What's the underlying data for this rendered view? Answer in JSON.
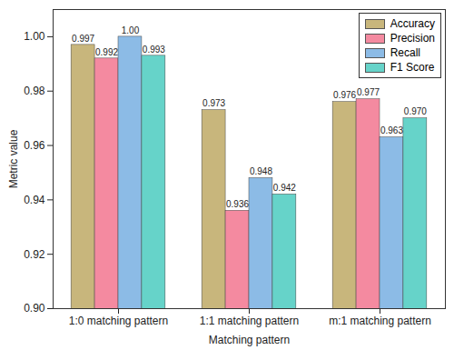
{
  "chart_data": {
    "type": "bar",
    "x_label": "Matching pattern",
    "y_label": "Metric value",
    "categories": [
      "1:0 matching pattern",
      "1:1 matching pattern",
      "m:1 matching pattern"
    ],
    "series": [
      {
        "name": "Accuracy",
        "color": "#c8b67c",
        "values": [
          0.997,
          0.973,
          0.976
        ],
        "value_labels": [
          "0.997",
          "0.973",
          "0.976"
        ]
      },
      {
        "name": "Precision",
        "color": "#f48aa0",
        "values": [
          0.992,
          0.936,
          0.977
        ],
        "value_labels": [
          "0.992",
          "0.936",
          "0.977"
        ]
      },
      {
        "name": "Recall",
        "color": "#8cbbe6",
        "values": [
          1.0,
          0.948,
          0.963
        ],
        "value_labels": [
          "1.00",
          "0.948",
          "0.963"
        ]
      },
      {
        "name": "F1 Score",
        "color": "#66d3c9",
        "values": [
          0.993,
          0.942,
          0.97
        ],
        "value_labels": [
          "0.993",
          "0.942",
          "0.970"
        ]
      }
    ],
    "ylim": [
      0.9,
      1.01
    ],
    "yticks": [
      {
        "value": 0.9,
        "label": "0.90"
      },
      {
        "value": 0.92,
        "label": "0.92"
      },
      {
        "value": 0.94,
        "label": "0.94"
      },
      {
        "value": 0.96,
        "label": "0.96"
      },
      {
        "value": 0.98,
        "label": "0.98"
      },
      {
        "value": 1.0,
        "label": "1.00"
      }
    ],
    "legend": "top-right",
    "data_labels": true,
    "grid": false
  }
}
